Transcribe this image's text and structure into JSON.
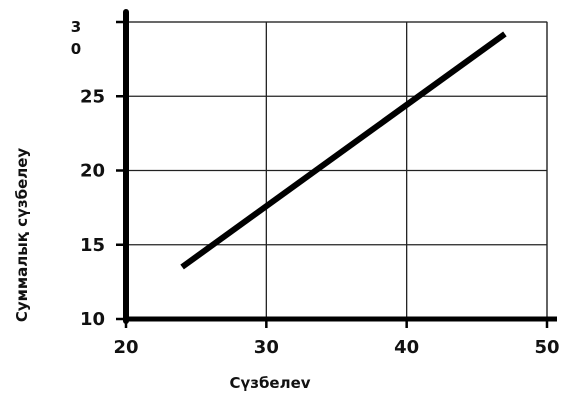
{
  "chart_data": {
    "type": "line",
    "title": "",
    "xlabel": "Сүзбелеv",
    "ylabel": "Суммалық сүзбелеу",
    "xlim": [
      20,
      50
    ],
    "ylim": [
      10,
      30
    ],
    "x_ticks": [
      "20",
      "30",
      "40",
      "50"
    ],
    "y_ticks": [
      "10",
      "15",
      "20",
      "25",
      "3\n0"
    ],
    "grid": true,
    "series": [
      {
        "x": [
          24,
          47
        ],
        "y": [
          13.5,
          29.2
        ]
      }
    ],
    "colors": {
      "line": "#000000",
      "grid": "#222222",
      "axis": "#000000",
      "frame": "#bbbbbb"
    }
  }
}
